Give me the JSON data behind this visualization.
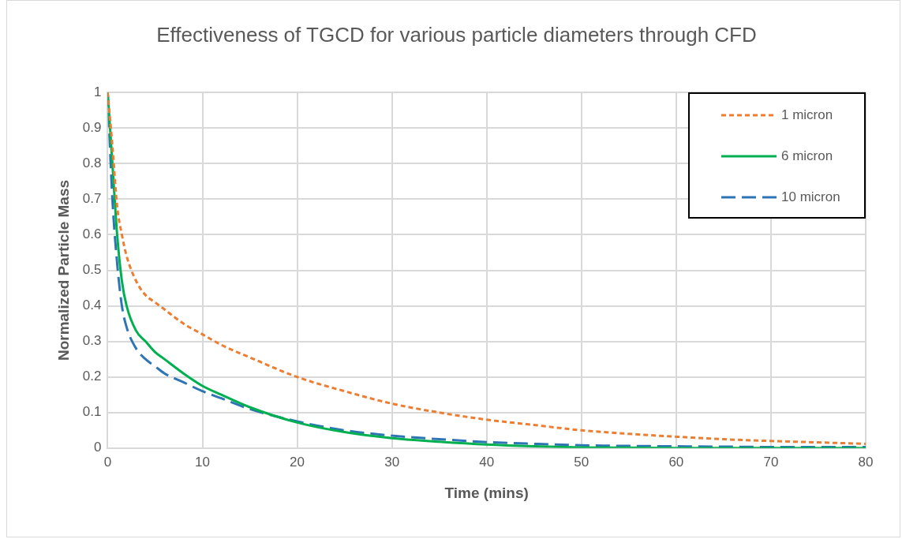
{
  "chart_data": {
    "type": "line",
    "title": "Effectiveness of TGCD for various particle diameters through CFD",
    "xlabel": "Time (mins)",
    "ylabel": "Normalized Particle Mass",
    "xlim": [
      0,
      80
    ],
    "xticks": [
      0,
      10,
      20,
      30,
      40,
      50,
      60,
      70,
      80
    ],
    "ylim": [
      0,
      1
    ],
    "yticks": [
      0,
      {
        "value": 0.1,
        "label": "0.1"
      },
      {
        "value": 0.2,
        "label": "0.2"
      },
      {
        "value": 0.3,
        "label": "0.3"
      },
      {
        "value": 0.4,
        "label": "0.4"
      },
      {
        "value": 0.5,
        "label": "0.5"
      },
      {
        "value": 0.6,
        "label": "0.6"
      },
      {
        "value": 0.7,
        "label": "0.7"
      },
      {
        "value": 0.8,
        "label": "0.8"
      },
      {
        "value": 0.9,
        "label": "0.9"
      },
      1
    ],
    "grid": true,
    "legend": "top right",
    "marker": "none",
    "series": [
      {
        "name": "1 micron",
        "color": "#ed7d31",
        "line_style": "dotted",
        "x": [
          0,
          0.5,
          1,
          1.5,
          2,
          3,
          4,
          5,
          6,
          8,
          10,
          12,
          15,
          20,
          25,
          30,
          35,
          40,
          45,
          50,
          55,
          60,
          65,
          70,
          75,
          80
        ],
        "values": [
          1,
          0.85,
          0.68,
          0.6,
          0.54,
          0.47,
          0.43,
          0.41,
          0.39,
          0.35,
          0.32,
          0.29,
          0.255,
          0.2,
          0.16,
          0.125,
          0.1,
          0.08,
          0.065,
          0.05,
          0.04,
          0.032,
          0.025,
          0.02,
          0.016,
          0.012
        ]
      },
      {
        "name": "6 micron",
        "color": "#00b050",
        "line_style": "solid",
        "x": [
          0,
          0.5,
          1,
          1.5,
          2,
          3,
          4,
          5,
          6,
          8,
          10,
          12,
          15,
          20,
          25,
          30,
          35,
          40,
          45,
          50,
          55,
          60,
          65,
          70,
          75,
          80
        ],
        "values": [
          1,
          0.8,
          0.6,
          0.47,
          0.4,
          0.33,
          0.3,
          0.27,
          0.25,
          0.21,
          0.175,
          0.15,
          0.115,
          0.072,
          0.045,
          0.028,
          0.018,
          0.01,
          0.005,
          0.002,
          0.001,
          0,
          0,
          0,
          0,
          0
        ]
      },
      {
        "name": "10 micron",
        "color": "#2e75b6",
        "line_style": "dashed",
        "x": [
          0,
          0.5,
          1,
          1.5,
          2,
          3,
          4,
          5,
          6,
          8,
          10,
          12,
          15,
          20,
          25,
          30,
          35,
          40,
          45,
          50,
          55,
          60,
          65,
          70,
          75,
          80
        ],
        "values": [
          1,
          0.7,
          0.52,
          0.4,
          0.34,
          0.28,
          0.25,
          0.23,
          0.21,
          0.185,
          0.16,
          0.14,
          0.11,
          0.075,
          0.05,
          0.035,
          0.025,
          0.017,
          0.012,
          0.008,
          0.006,
          0.005,
          0.004,
          0.003,
          0.003,
          0.003
        ]
      }
    ]
  }
}
